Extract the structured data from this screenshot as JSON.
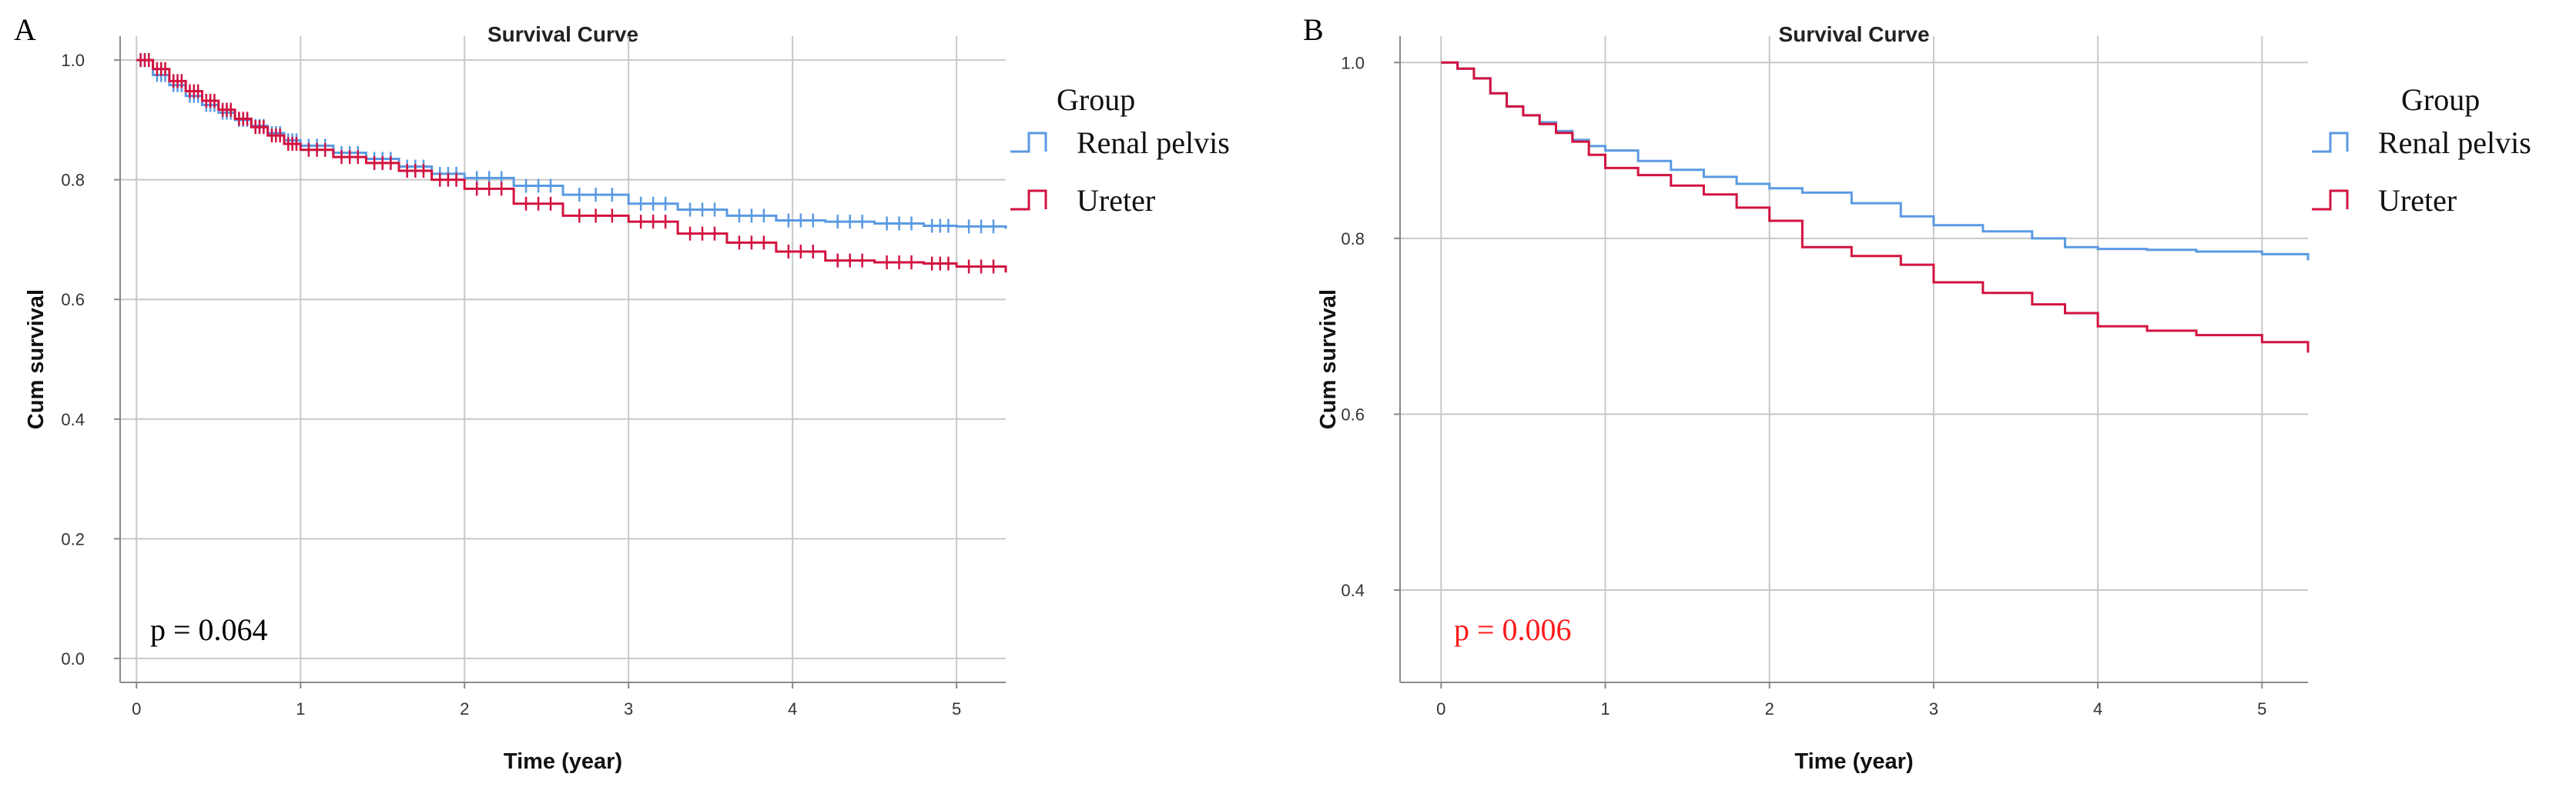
{
  "colors": {
    "renal_pelvis": "#5b9ae2",
    "ureter": "#d2123f",
    "grid": "#c8c8c8",
    "axis": "#8a8a8a",
    "pvalue_a": "#000000",
    "pvalue_b": "#ff1a1a"
  },
  "legend": {
    "title": "Group",
    "items": [
      "Renal pelvis",
      "Ureter"
    ]
  },
  "chart_data": [
    {
      "panel": "A",
      "type": "line",
      "title": "Survival Curve",
      "xlabel": "Time (year)",
      "ylabel": "Cum survival",
      "xlim": [
        -0.1,
        5.3
      ],
      "ylim": [
        -0.04,
        1.04
      ],
      "xticks": [
        "0",
        "1",
        "2",
        "3",
        "4",
        "5"
      ],
      "yticks": [
        "0.0",
        "0.2",
        "0.4",
        "0.6",
        "0.8",
        "1.0"
      ],
      "grid": true,
      "censor_marks": true,
      "annotation": "p = 0.064",
      "series": [
        {
          "name": "Renal pelvis",
          "x": [
            0,
            0.1,
            0.2,
            0.3,
            0.4,
            0.5,
            0.6,
            0.7,
            0.8,
            0.9,
            1.0,
            1.2,
            1.4,
            1.6,
            1.8,
            2.0,
            2.3,
            2.6,
            3.0,
            3.3,
            3.6,
            3.9,
            4.2,
            4.5,
            4.8,
            5.0,
            5.3
          ],
          "y": [
            1.0,
            0.975,
            0.958,
            0.94,
            0.925,
            0.912,
            0.9,
            0.89,
            0.878,
            0.866,
            0.857,
            0.845,
            0.835,
            0.822,
            0.81,
            0.803,
            0.79,
            0.775,
            0.76,
            0.75,
            0.74,
            0.732,
            0.73,
            0.727,
            0.723,
            0.722,
            0.718
          ]
        },
        {
          "name": "Ureter",
          "x": [
            0,
            0.1,
            0.2,
            0.3,
            0.4,
            0.5,
            0.6,
            0.7,
            0.8,
            0.9,
            1.0,
            1.2,
            1.4,
            1.6,
            1.8,
            2.0,
            2.3,
            2.6,
            3.0,
            3.3,
            3.6,
            3.9,
            4.2,
            4.5,
            4.8,
            5.0,
            5.3
          ],
          "y": [
            1.0,
            0.985,
            0.965,
            0.948,
            0.932,
            0.917,
            0.902,
            0.888,
            0.874,
            0.86,
            0.85,
            0.838,
            0.828,
            0.815,
            0.8,
            0.785,
            0.76,
            0.74,
            0.73,
            0.71,
            0.695,
            0.68,
            0.665,
            0.662,
            0.66,
            0.655,
            0.645
          ]
        }
      ]
    },
    {
      "panel": "B",
      "type": "line",
      "title": "Survival Curve",
      "xlabel": "Time (year)",
      "ylabel": "Cum survival",
      "xlim": [
        -0.25,
        5.28
      ],
      "ylim": [
        0.295,
        1.03
      ],
      "xticks": [
        "0",
        "1",
        "2",
        "3",
        "4",
        "5"
      ],
      "yticks": [
        "0.4",
        "0.6",
        "0.8",
        "1.0"
      ],
      "grid": true,
      "censor_marks": false,
      "annotation": "p = 0.006",
      "series": [
        {
          "name": "Renal pelvis",
          "x": [
            0,
            0.1,
            0.2,
            0.3,
            0.4,
            0.5,
            0.6,
            0.7,
            0.8,
            0.9,
            1.0,
            1.2,
            1.4,
            1.6,
            1.8,
            2.0,
            2.2,
            2.5,
            2.8,
            3.0,
            3.3,
            3.6,
            3.8,
            4.0,
            4.3,
            4.6,
            5.0,
            5.28
          ],
          "y": [
            1.0,
            0.993,
            0.982,
            0.965,
            0.95,
            0.94,
            0.932,
            0.922,
            0.912,
            0.905,
            0.9,
            0.888,
            0.878,
            0.87,
            0.862,
            0.857,
            0.852,
            0.84,
            0.825,
            0.815,
            0.808,
            0.8,
            0.79,
            0.788,
            0.787,
            0.785,
            0.782,
            0.775
          ]
        },
        {
          "name": "Ureter",
          "x": [
            0,
            0.1,
            0.2,
            0.3,
            0.4,
            0.5,
            0.6,
            0.7,
            0.8,
            0.9,
            1.0,
            1.2,
            1.4,
            1.6,
            1.8,
            2.0,
            2.2,
            2.5,
            2.8,
            3.0,
            3.3,
            3.6,
            3.8,
            4.0,
            4.3,
            4.6,
            5.0,
            5.28
          ],
          "y": [
            1.0,
            0.993,
            0.982,
            0.965,
            0.95,
            0.94,
            0.93,
            0.92,
            0.91,
            0.895,
            0.88,
            0.872,
            0.86,
            0.85,
            0.835,
            0.82,
            0.79,
            0.78,
            0.77,
            0.75,
            0.738,
            0.725,
            0.715,
            0.7,
            0.695,
            0.69,
            0.682,
            0.67
          ]
        }
      ]
    }
  ]
}
